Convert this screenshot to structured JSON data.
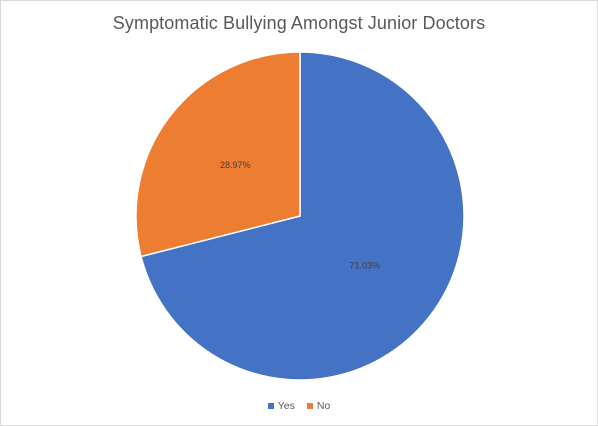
{
  "chart_data": {
    "type": "pie",
    "title": "Symptomatic Bullying Amongst Junior Doctors",
    "categories": [
      "Yes",
      "No"
    ],
    "values": [
      71.03,
      28.97
    ],
    "data_labels": [
      "71.03%",
      "28.97%"
    ],
    "colors": [
      "#4472C4",
      "#ED7D31"
    ],
    "legend": {
      "position": "bottom",
      "items": [
        {
          "label": "Yes",
          "color": "#4472C4"
        },
        {
          "label": "No",
          "color": "#ED7D31"
        }
      ]
    }
  }
}
